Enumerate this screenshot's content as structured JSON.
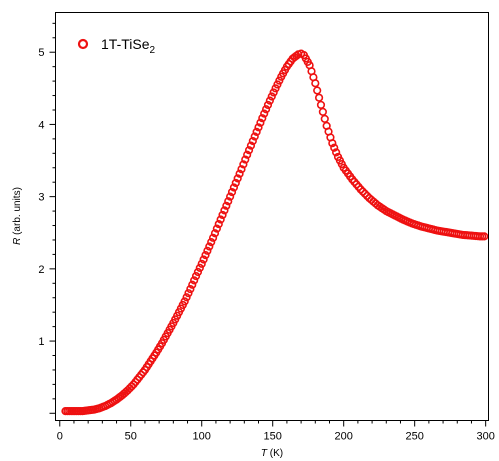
{
  "chart_data": {
    "type": "scatter",
    "title": "",
    "xlabel_italic": "T",
    "xlabel_rest": " (K)",
    "ylabel_italic": "R",
    "ylabel_rest": " (arb. units)",
    "xlim": [
      -3,
      302
    ],
    "ylim": [
      -0.1,
      5.55
    ],
    "x_ticks": [
      0,
      50,
      100,
      150,
      200,
      250,
      300
    ],
    "x_tick_labels": [
      "0",
      "50",
      "100",
      "150",
      "200",
      "250",
      "300"
    ],
    "y_ticks": [
      0,
      1,
      2,
      3,
      4,
      5
    ],
    "y_tick_labels": [
      "",
      "1",
      "2",
      "3",
      "4",
      "5"
    ],
    "minor_x_step": 10,
    "minor_y_step": 0.2,
    "legend_position": "top-left",
    "marker_color": "#ee1111",
    "marker": "open-circle",
    "series": [
      {
        "legend_main": "1T-TiSe",
        "legend_sub": "2",
        "points": [
          [
            4,
            0.03
          ],
          [
            8,
            0.03
          ],
          [
            12,
            0.03
          ],
          [
            16,
            0.03
          ],
          [
            20,
            0.04
          ],
          [
            24,
            0.05
          ],
          [
            28,
            0.07
          ],
          [
            32,
            0.1
          ],
          [
            36,
            0.14
          ],
          [
            40,
            0.19
          ],
          [
            44,
            0.25
          ],
          [
            48,
            0.32
          ],
          [
            52,
            0.4
          ],
          [
            56,
            0.5
          ],
          [
            60,
            0.6
          ],
          [
            64,
            0.72
          ],
          [
            68,
            0.84
          ],
          [
            72,
            0.97
          ],
          [
            76,
            1.11
          ],
          [
            80,
            1.25
          ],
          [
            84,
            1.4
          ],
          [
            88,
            1.55
          ],
          [
            92,
            1.72
          ],
          [
            96,
            1.9
          ],
          [
            100,
            2.07
          ],
          [
            104,
            2.25
          ],
          [
            108,
            2.43
          ],
          [
            112,
            2.62
          ],
          [
            116,
            2.81
          ],
          [
            120,
            3.0
          ],
          [
            124,
            3.19
          ],
          [
            128,
            3.38
          ],
          [
            132,
            3.58
          ],
          [
            136,
            3.77
          ],
          [
            140,
            3.96
          ],
          [
            144,
            4.15
          ],
          [
            148,
            4.33
          ],
          [
            152,
            4.5
          ],
          [
            156,
            4.66
          ],
          [
            160,
            4.8
          ],
          [
            164,
            4.91
          ],
          [
            168,
            4.97
          ],
          [
            170,
            4.98
          ],
          [
            172,
            4.96
          ],
          [
            176,
            4.82
          ],
          [
            180,
            4.57
          ],
          [
            184,
            4.27
          ],
          [
            188,
            3.98
          ],
          [
            192,
            3.74
          ],
          [
            196,
            3.55
          ],
          [
            200,
            3.4
          ],
          [
            206,
            3.24
          ],
          [
            212,
            3.1
          ],
          [
            218,
            2.98
          ],
          [
            224,
            2.88
          ],
          [
            230,
            2.8
          ],
          [
            236,
            2.74
          ],
          [
            242,
            2.68
          ],
          [
            248,
            2.63
          ],
          [
            254,
            2.59
          ],
          [
            260,
            2.56
          ],
          [
            266,
            2.53
          ],
          [
            272,
            2.51
          ],
          [
            278,
            2.49
          ],
          [
            284,
            2.47
          ],
          [
            290,
            2.46
          ],
          [
            296,
            2.45
          ],
          [
            299,
            2.45
          ]
        ]
      }
    ]
  }
}
